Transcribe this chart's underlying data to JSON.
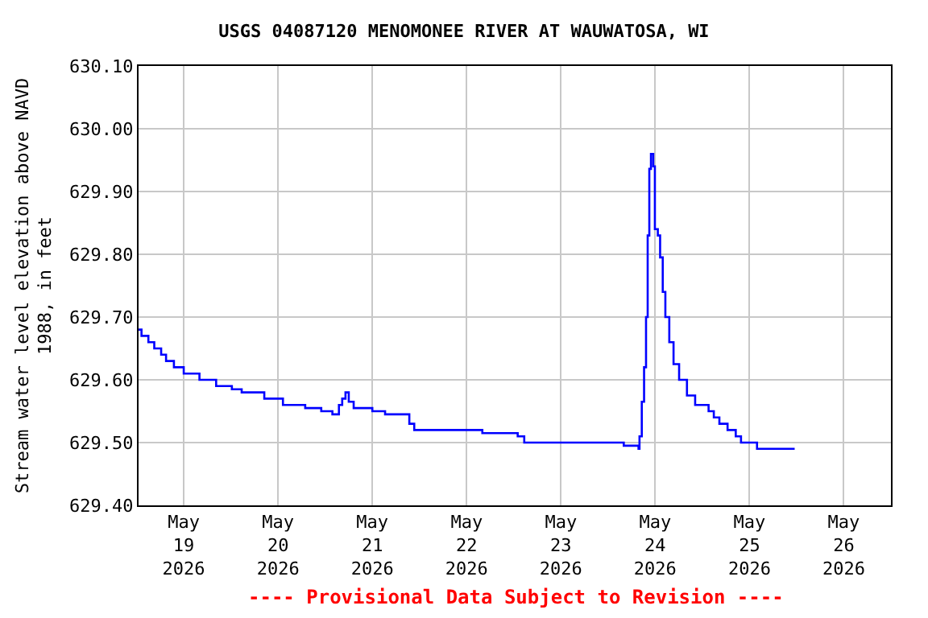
{
  "chart_data": {
    "type": "step",
    "title": "USGS 04087120 MENOMONEE RIVER AT WAUWATOSA, WI",
    "ylabel": "Stream water level elevation above NAVD\n1988, in feet",
    "annotations": [
      "---- Provisional Data Subject to Revision ----"
    ],
    "x": [
      "2026-05-18T12:30",
      "2026-05-18T13:15",
      "2026-05-18T15:00",
      "2026-05-18T16:30",
      "2026-05-18T18:15",
      "2026-05-18T19:30",
      "2026-05-18T21:30",
      "2026-05-19T00:00",
      "2026-05-19T04:00",
      "2026-05-19T08:15",
      "2026-05-19T12:15",
      "2026-05-19T14:45",
      "2026-05-19T20:30",
      "2026-05-20T01:15",
      "2026-05-20T06:55",
      "2026-05-20T11:00",
      "2026-05-20T13:50",
      "2026-05-20T15:30",
      "2026-05-20T16:20",
      "2026-05-20T17:10",
      "2026-05-20T18:00",
      "2026-05-20T19:15",
      "2026-05-21T00:00",
      "2026-05-21T03:15",
      "2026-05-21T09:25",
      "2026-05-21T10:40",
      "2026-05-22T04:00",
      "2026-05-22T13:00",
      "2026-05-22T14:40",
      "2026-05-23T14:50",
      "2026-05-23T16:00",
      "2026-05-23T19:45",
      "2026-05-23T20:00",
      "2026-05-23T20:35",
      "2026-05-23T21:10",
      "2026-05-23T21:40",
      "2026-05-23T22:05",
      "2026-05-23T22:30",
      "2026-05-23T22:55",
      "2026-05-23T23:30",
      "2026-05-23T23:55",
      "2026-05-24T00:40",
      "2026-05-24T01:15",
      "2026-05-24T01:55",
      "2026-05-24T02:35",
      "2026-05-24T03:35",
      "2026-05-24T04:40",
      "2026-05-24T06:05",
      "2026-05-24T08:05",
      "2026-05-24T10:10",
      "2026-05-24T13:35",
      "2026-05-24T14:55",
      "2026-05-24T16:20",
      "2026-05-24T18:25",
      "2026-05-24T20:30",
      "2026-05-24T21:50",
      "2026-05-25T01:55",
      "2026-05-25T11:30"
    ],
    "series": [
      {
        "color": "#0000ff",
        "values": [
          629.68,
          629.67,
          629.66,
          629.65,
          629.64,
          629.63,
          629.62,
          629.61,
          629.6,
          629.59,
          629.585,
          629.58,
          629.57,
          629.56,
          629.555,
          629.55,
          629.545,
          629.56,
          629.57,
          629.58,
          629.565,
          629.555,
          629.55,
          629.545,
          629.53,
          629.52,
          629.515,
          629.51,
          629.5,
          629.5,
          629.495,
          629.49,
          629.51,
          629.565,
          629.62,
          629.7,
          629.83,
          629.936,
          629.96,
          629.94,
          629.84,
          629.83,
          629.795,
          629.74,
          629.7,
          629.66,
          629.625,
          629.6,
          629.575,
          629.56,
          629.55,
          629.54,
          629.53,
          629.52,
          629.51,
          629.5,
          629.49,
          629.49
        ]
      }
    ],
    "xlim": [
      "2026-05-18T12:30",
      "2026-05-26T12:00"
    ],
    "xticks": [
      {
        "value": "2026-05-19",
        "label": "May\n19\n2026"
      },
      {
        "value": "2026-05-20",
        "label": "May\n20\n2026"
      },
      {
        "value": "2026-05-21",
        "label": "May\n21\n2026"
      },
      {
        "value": "2026-05-22",
        "label": "May\n22\n2026"
      },
      {
        "value": "2026-05-23",
        "label": "May\n23\n2026"
      },
      {
        "value": "2026-05-24",
        "label": "May\n24\n2026"
      },
      {
        "value": "2026-05-25",
        "label": "May\n25\n2026"
      },
      {
        "value": "2026-05-26",
        "label": "May\n26\n2026"
      }
    ],
    "ylim": [
      629.4,
      630.1
    ],
    "yticks": [
      {
        "value": 629.4,
        "label": "629.40"
      },
      {
        "value": 629.5,
        "label": "629.50"
      },
      {
        "value": 629.6,
        "label": "629.60"
      },
      {
        "value": 629.7,
        "label": "629.70"
      },
      {
        "value": 629.8,
        "label": "629.80"
      },
      {
        "value": 629.9,
        "label": "629.90"
      },
      {
        "value": 630.0,
        "label": "630.00"
      },
      {
        "value": 630.1,
        "label": "630.10"
      }
    ],
    "grid": true
  }
}
